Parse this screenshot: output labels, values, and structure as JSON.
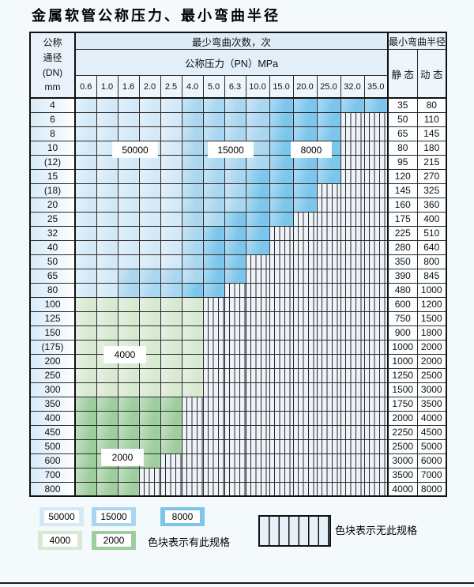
{
  "title": "金属软管公称压力、最小弯曲半径",
  "table": {
    "corner_lines": [
      "公称",
      "通径",
      "(DN)",
      "mm"
    ],
    "top_header": "最少弯曲次数，次",
    "pressure_header": "公称压力（PN）MPa",
    "radius_header": "最小弯曲半径",
    "static_label": "静 态",
    "dynamic_label": "动 态",
    "pressures": [
      "0.6",
      "1.0",
      "1.6",
      "2.0",
      "2.5",
      "4.0",
      "5.0",
      "6.3",
      "10.0",
      "15.0",
      "20.0",
      "25.0",
      "32.0",
      "35.0"
    ],
    "rows": [
      {
        "dn": "4",
        "static": "35",
        "dynamic": "80",
        "bands": [
          [
            "b1",
            5
          ],
          [
            "b2",
            4
          ],
          [
            "b3",
            5
          ]
        ]
      },
      {
        "dn": "6",
        "static": "50",
        "dynamic": "110",
        "bands": [
          [
            "b1",
            5
          ],
          [
            "b2",
            4
          ],
          [
            "b3",
            3
          ]
        ]
      },
      {
        "dn": "8",
        "static": "65",
        "dynamic": "145",
        "bands": [
          [
            "b1",
            5
          ],
          [
            "b2",
            4
          ],
          [
            "b3",
            3
          ]
        ]
      },
      {
        "dn": "10",
        "static": "80",
        "dynamic": "180",
        "bands": [
          [
            "b1",
            5
          ],
          [
            "b2",
            4
          ],
          [
            "b3",
            3
          ]
        ]
      },
      {
        "dn": "(12)",
        "static": "95",
        "dynamic": "215",
        "bands": [
          [
            "b1",
            5
          ],
          [
            "b2",
            4
          ],
          [
            "b3",
            3
          ]
        ]
      },
      {
        "dn": "15",
        "static": "120",
        "dynamic": "270",
        "bands": [
          [
            "b1",
            5
          ],
          [
            "b2",
            3
          ],
          [
            "b3",
            4
          ]
        ]
      },
      {
        "dn": "(18)",
        "static": "145",
        "dynamic": "325",
        "bands": [
          [
            "b1",
            5
          ],
          [
            "b2",
            3
          ],
          [
            "b3",
            3
          ]
        ]
      },
      {
        "dn": "20",
        "static": "160",
        "dynamic": "360",
        "bands": [
          [
            "b1",
            5
          ],
          [
            "b2",
            3
          ],
          [
            "b3",
            3
          ]
        ]
      },
      {
        "dn": "25",
        "static": "175",
        "dynamic": "400",
        "bands": [
          [
            "b1",
            5
          ],
          [
            "b2",
            2
          ],
          [
            "b3",
            3
          ]
        ]
      },
      {
        "dn": "32",
        "static": "225",
        "dynamic": "510",
        "bands": [
          [
            "b1",
            5
          ],
          [
            "b2",
            1
          ],
          [
            "b3",
            3
          ]
        ]
      },
      {
        "dn": "40",
        "static": "280",
        "dynamic": "640",
        "bands": [
          [
            "b1",
            5
          ],
          [
            "b2",
            1
          ],
          [
            "b3",
            3
          ]
        ]
      },
      {
        "dn": "50",
        "static": "350",
        "dynamic": "800",
        "bands": [
          [
            "b1",
            5
          ],
          [
            "b2",
            1
          ],
          [
            "b3",
            2
          ]
        ]
      },
      {
        "dn": "65",
        "static": "390",
        "dynamic": "845",
        "bands": [
          [
            "b1",
            2
          ],
          [
            "b2",
            4
          ],
          [
            "b3",
            2
          ]
        ]
      },
      {
        "dn": "80",
        "static": "480",
        "dynamic": "1000",
        "bands": [
          [
            "b1",
            2
          ],
          [
            "b2",
            3
          ],
          [
            "b3",
            2
          ]
        ]
      },
      {
        "dn": "100",
        "static": "600",
        "dynamic": "1200",
        "bands": [
          [
            "g1",
            6
          ]
        ]
      },
      {
        "dn": "125",
        "static": "750",
        "dynamic": "1500",
        "bands": [
          [
            "g1",
            6
          ]
        ]
      },
      {
        "dn": "150",
        "static": "900",
        "dynamic": "1800",
        "bands": [
          [
            "g1",
            6
          ]
        ]
      },
      {
        "dn": "(175)",
        "static": "1000",
        "dynamic": "2000",
        "bands": [
          [
            "g1",
            6
          ]
        ]
      },
      {
        "dn": "200",
        "static": "1000",
        "dynamic": "2000",
        "bands": [
          [
            "g1",
            6
          ]
        ]
      },
      {
        "dn": "250",
        "static": "1250",
        "dynamic": "2500",
        "bands": [
          [
            "g1",
            6
          ]
        ]
      },
      {
        "dn": "300",
        "static": "1500",
        "dynamic": "3000",
        "bands": [
          [
            "g1",
            6
          ]
        ]
      },
      {
        "dn": "350",
        "static": "1750",
        "dynamic": "3500",
        "bands": [
          [
            "g2",
            5
          ]
        ]
      },
      {
        "dn": "400",
        "static": "2000",
        "dynamic": "4000",
        "bands": [
          [
            "g2",
            5
          ]
        ]
      },
      {
        "dn": "450",
        "static": "2250",
        "dynamic": "4500",
        "bands": [
          [
            "g2",
            5
          ]
        ]
      },
      {
        "dn": "500",
        "static": "2500",
        "dynamic": "5000",
        "bands": [
          [
            "g2",
            5
          ]
        ]
      },
      {
        "dn": "600",
        "static": "3000",
        "dynamic": "6000",
        "bands": [
          [
            "g2",
            4
          ]
        ]
      },
      {
        "dn": "700",
        "static": "3500",
        "dynamic": "7000",
        "bands": [
          [
            "g2",
            3
          ]
        ]
      },
      {
        "dn": "800",
        "static": "4000",
        "dynamic": "8000",
        "bands": [
          [
            "g2",
            3
          ]
        ]
      }
    ]
  },
  "overlays": {
    "l50000": "50000",
    "l15000": "15000",
    "l8000": "8000",
    "l4000": "4000",
    "l2000": "2000"
  },
  "legend": {
    "chips": [
      {
        "value": "50000",
        "color": "b1"
      },
      {
        "value": "15000",
        "color": "b2"
      },
      {
        "value": "8000",
        "color": "b3"
      },
      {
        "value": "4000",
        "color": "g1"
      },
      {
        "value": "2000",
        "color": "g2"
      }
    ],
    "has_spec_text": "色块表示有此规格",
    "no_spec_text": "色块表示无此规格"
  },
  "colors": {
    "b1": "#d4e9f7",
    "b2": "#a9d6f0",
    "b3": "#7cc5ec",
    "g1": "#d8e9d2",
    "g2": "#9fce9e",
    "hatch_bg": "#edf3f9",
    "border": "#2b2b2b"
  }
}
